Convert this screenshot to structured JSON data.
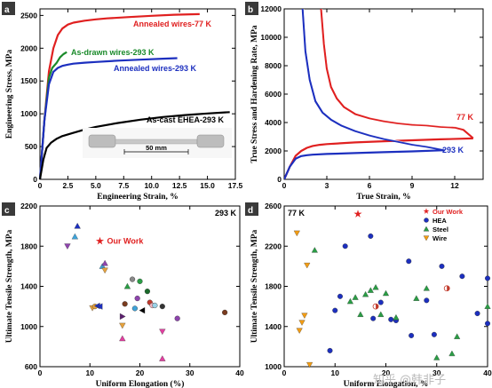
{
  "chart_data": [
    {
      "panel": "a",
      "type": "line",
      "xlabel": "Engineering Strain, %",
      "ylabel": "Engineering Stress, MPa",
      "xlim": [
        0,
        17.5
      ],
      "ylim": [
        0,
        2600
      ],
      "xticks": [
        0,
        2.5,
        5.0,
        7.5,
        10.0,
        12.5,
        15.0,
        17.5
      ],
      "xtick_labels": [
        "0",
        "2.5",
        "5.0",
        "7.5",
        "10.0",
        "12.5",
        "15.0",
        "17.5"
      ],
      "yticks": [
        0,
        500,
        1000,
        1500,
        2000,
        2500
      ],
      "ytick_labels": [
        "0",
        "500",
        "1000",
        "1500",
        "2000",
        "2500"
      ],
      "series": [
        {
          "name": "Annealed wires-77 K",
          "color": "#e02020",
          "label_color": "#e02020",
          "x": [
            0,
            0.4,
            0.8,
            1.2,
            1.6,
            2.0,
            2.5,
            3.0,
            4.0,
            5.0,
            6.0,
            8.0,
            10.0,
            12.0,
            14.3
          ],
          "y": [
            0,
            900,
            1650,
            2000,
            2200,
            2300,
            2360,
            2390,
            2420,
            2440,
            2455,
            2475,
            2495,
            2510,
            2520
          ]
        },
        {
          "name": "As-drawn wires-293 K",
          "color": "#1a8a2a",
          "label_color": "#1a8a2a",
          "x": [
            0,
            0.4,
            0.8,
            1.1,
            1.5,
            1.8,
            2.1,
            2.4
          ],
          "y": [
            0,
            900,
            1550,
            1700,
            1780,
            1860,
            1910,
            1940
          ]
        },
        {
          "name": "Annealed wires-293 K",
          "color": "#1c2fbf",
          "label_color": "#1c2fbf",
          "x": [
            0,
            0.4,
            0.8,
            1.2,
            1.6,
            2.0,
            2.5,
            3.0,
            4.0,
            5.0,
            7.0,
            9.0,
            11.0,
            12.3
          ],
          "y": [
            0,
            900,
            1450,
            1640,
            1700,
            1730,
            1750,
            1765,
            1780,
            1790,
            1810,
            1825,
            1840,
            1848
          ]
        },
        {
          "name": "As-cast EHEA-293 K",
          "color": "#000000",
          "label_color": "#000000",
          "x": [
            0,
            0.3,
            0.6,
            1.0,
            1.5,
            2.0,
            3.0,
            4.0,
            5.0,
            7.0,
            9.0,
            11.0,
            13.0,
            15.0,
            17.0
          ],
          "y": [
            0,
            300,
            480,
            560,
            620,
            660,
            710,
            760,
            800,
            860,
            910,
            950,
            980,
            1005,
            1025
          ]
        }
      ],
      "inset_label": "50 mm"
    },
    {
      "panel": "b",
      "type": "line",
      "xlabel": "True Strain, %",
      "ylabel": "True Stress and Hardening Rate, MPa",
      "xlim": [
        0,
        14
      ],
      "ylim": [
        0,
        12000
      ],
      "xticks": [
        0,
        3,
        6,
        9,
        12
      ],
      "xtick_labels": [
        "0",
        "3",
        "6",
        "9",
        "12"
      ],
      "yticks": [
        0,
        2000,
        4000,
        6000,
        8000,
        10000,
        12000
      ],
      "ytick_labels": [
        "0",
        "2000",
        "4000",
        "6000",
        "8000",
        "10000",
        "12000"
      ],
      "series": [
        {
          "name": "77 K",
          "role": "true stress",
          "color": "#e02020",
          "x": [
            0,
            0.4,
            0.8,
            1.2,
            1.6,
            2.0,
            2.5,
            3.0,
            5.0,
            7.0,
            9.0,
            11.0,
            13.3
          ],
          "y": [
            0,
            900,
            1650,
            2000,
            2220,
            2350,
            2430,
            2480,
            2600,
            2680,
            2750,
            2820,
            2880
          ]
        },
        {
          "name": "77 K",
          "role": "hardening rate",
          "color": "#e02020",
          "x": [
            2.6,
            2.8,
            3.0,
            3.3,
            3.7,
            4.2,
            5.0,
            6.0,
            7.0,
            8.0,
            9.0,
            10.0,
            11.0,
            12.0,
            12.6,
            13.3
          ],
          "y": [
            12000,
            9500,
            7800,
            6500,
            5700,
            5100,
            4600,
            4300,
            4100,
            3950,
            3850,
            3800,
            3700,
            3650,
            3500,
            2900
          ]
        },
        {
          "name": "293 K",
          "role": "true stress",
          "color": "#1c2fbf",
          "x": [
            0,
            0.4,
            0.8,
            1.2,
            1.6,
            2.0,
            3.0,
            5.0,
            7.0,
            9.0,
            11.3
          ],
          "y": [
            0,
            900,
            1450,
            1640,
            1700,
            1740,
            1790,
            1850,
            1910,
            1970,
            2050
          ]
        },
        {
          "name": "293 K",
          "role": "hardening rate",
          "color": "#1c2fbf",
          "x": [
            1.3,
            1.5,
            1.8,
            2.2,
            2.7,
            3.3,
            4.0,
            5.0,
            6.0,
            7.0,
            8.0,
            9.0,
            10.0,
            11.3
          ],
          "y": [
            12000,
            9000,
            7000,
            5500,
            4700,
            4200,
            3800,
            3400,
            3100,
            2850,
            2650,
            2450,
            2300,
            2050
          ]
        }
      ],
      "labels": [
        {
          "text": "77 K",
          "color": "#e02020"
        },
        {
          "text": "293 K",
          "color": "#1c2fbf"
        }
      ]
    },
    {
      "panel": "c",
      "type": "scatter",
      "temperature_label": "293 K",
      "xlabel": "Uniform Elongation (%)",
      "ylabel": "Ultimate Tensile Strength, MPa",
      "xlim": [
        0,
        40
      ],
      "ylim": [
        600,
        2200
      ],
      "xticks": [
        0,
        10,
        20,
        30,
        40
      ],
      "xtick_labels": [
        "0",
        "10",
        "20",
        "30",
        "40"
      ],
      "yticks": [
        600,
        1000,
        1400,
        1800,
        2200
      ],
      "ytick_labels": [
        "600",
        "1000",
        "1400",
        "1800",
        "2200"
      ],
      "annotation": "Our Work",
      "our_work": {
        "x": 12,
        "y": 1850,
        "color": "#e02020"
      },
      "points": [
        {
          "x": 5.5,
          "y": 1800,
          "shape": "tri-down",
          "color": "#8e44ad"
        },
        {
          "x": 7,
          "y": 1895,
          "shape": "tri-up",
          "color": "#3fa3d9"
        },
        {
          "x": 7.5,
          "y": 2000,
          "shape": "tri-up",
          "color": "#1c2fbf"
        },
        {
          "x": 12.5,
          "y": 1600,
          "shape": "tri-up",
          "color": "#3fa3d9"
        },
        {
          "x": 13,
          "y": 1630,
          "shape": "tri-up",
          "color": "#8e44ad"
        },
        {
          "x": 13,
          "y": 1560,
          "shape": "tri-down",
          "color": "#e6a23c"
        },
        {
          "x": 10.5,
          "y": 1185,
          "shape": "tri-down",
          "color": "#e6a23c"
        },
        {
          "x": 11,
          "y": 1200,
          "shape": "circle",
          "color": "#e6a23c"
        },
        {
          "x": 11.5,
          "y": 1205,
          "shape": "tri-left",
          "color": "#1c2fbf"
        },
        {
          "x": 12,
          "y": 1200,
          "shape": "tri-left",
          "color": "#1c2fbf"
        },
        {
          "x": 16.5,
          "y": 1010,
          "shape": "tri-down",
          "color": "#e6a23c"
        },
        {
          "x": 16.5,
          "y": 880,
          "shape": "tri-up",
          "color": "#e040a0"
        },
        {
          "x": 16.5,
          "y": 1100,
          "shape": "tri-right",
          "color": "#5b1f6e"
        },
        {
          "x": 17,
          "y": 1225,
          "shape": "circle",
          "color": "#7a3b1e"
        },
        {
          "x": 17.5,
          "y": 1400,
          "shape": "tri-up",
          "color": "#2a9d45"
        },
        {
          "x": 18.5,
          "y": 1470,
          "shape": "circle",
          "color": "#888"
        },
        {
          "x": 19,
          "y": 1180,
          "shape": "circle",
          "color": "#3fa3d9"
        },
        {
          "x": 20,
          "y": 1450,
          "shape": "circle",
          "color": "#2a9d45"
        },
        {
          "x": 19.5,
          "y": 1280,
          "shape": "circle",
          "color": "#8e44ad"
        },
        {
          "x": 20.5,
          "y": 1160,
          "shape": "tri-left",
          "color": "#000"
        },
        {
          "x": 21.5,
          "y": 1350,
          "shape": "circle",
          "color": "#1a6a2a"
        },
        {
          "x": 22,
          "y": 1240,
          "shape": "circle",
          "color": "#c0392b"
        },
        {
          "x": 22.5,
          "y": 1210,
          "shape": "circle",
          "color": "#f4b6c2"
        },
        {
          "x": 23,
          "y": 1210,
          "shape": "circle",
          "color": "#9ad3e8"
        },
        {
          "x": 24.5,
          "y": 1200,
          "shape": "circle",
          "color": "#333"
        },
        {
          "x": 24.5,
          "y": 950,
          "shape": "tri-down",
          "color": "#e040a0"
        },
        {
          "x": 27.5,
          "y": 1080,
          "shape": "circle",
          "color": "#8e44ad"
        },
        {
          "x": 24.5,
          "y": 680,
          "shape": "tri-up",
          "color": "#e040a0"
        },
        {
          "x": 37,
          "y": 1140,
          "shape": "circle",
          "color": "#7a3b1e"
        }
      ]
    },
    {
      "panel": "d",
      "type": "scatter",
      "temperature_label": "77 K",
      "xlabel": "Uniform Elongation, %",
      "ylabel": "Ultimate Tensile Strength, MPa",
      "xlim": [
        0,
        40
      ],
      "ylim": [
        1000,
        2600
      ],
      "xticks": [
        0,
        10,
        20,
        30,
        40
      ],
      "xtick_labels": [
        "0",
        "10",
        "20",
        "30",
        "40"
      ],
      "yticks": [
        1000,
        1400,
        1800,
        2200,
        2600
      ],
      "ytick_labels": [
        "1000",
        "1400",
        "1800",
        "2200",
        "2600"
      ],
      "legend": [
        {
          "label": "Our Work",
          "shape": "star",
          "color": "#e02020"
        },
        {
          "label": "HEA",
          "shape": "circle",
          "color": "#1c2fbf"
        },
        {
          "label": "Steel",
          "shape": "tri-up",
          "color": "#2a9d45"
        },
        {
          "label": "Wire",
          "shape": "tri-down",
          "color": "#f39c12"
        }
      ],
      "our_work": {
        "x": 14.5,
        "y": 2520,
        "color": "#e02020"
      },
      "hea": [
        [
          9,
          1160
        ],
        [
          10,
          1560
        ],
        [
          11,
          1700
        ],
        [
          12,
          2200
        ],
        [
          17,
          2300
        ],
        [
          17.5,
          1480
        ],
        [
          19,
          1640
        ],
        [
          21,
          1470
        ],
        [
          22,
          1460
        ],
        [
          24.5,
          2050
        ],
        [
          25,
          1310
        ],
        [
          28,
          1660
        ],
        [
          29.5,
          1320
        ],
        [
          31,
          2000
        ],
        [
          35,
          1900
        ],
        [
          38,
          1530
        ],
        [
          40,
          1880
        ],
        [
          40,
          1430
        ]
      ],
      "steel": [
        [
          6,
          2160
        ],
        [
          13,
          1650
        ],
        [
          14,
          1690
        ],
        [
          15,
          1520
        ],
        [
          16,
          1720
        ],
        [
          17,
          1760
        ],
        [
          18,
          1790
        ],
        [
          19,
          1520
        ],
        [
          20,
          1730
        ],
        [
          22,
          1490
        ],
        [
          26,
          1680
        ],
        [
          28,
          1780
        ],
        [
          30,
          1090
        ],
        [
          33,
          1130
        ],
        [
          34,
          1300
        ],
        [
          40,
          1600
        ]
      ],
      "wire": [
        [
          2.5,
          2330
        ],
        [
          3,
          1360
        ],
        [
          3.5,
          1440
        ],
        [
          4,
          1510
        ],
        [
          4.5,
          2010
        ],
        [
          5,
          1020
        ]
      ],
      "half_filled": [
        [
          18,
          1600
        ],
        [
          32,
          1780
        ]
      ]
    }
  ],
  "watermark": "知乎 @韩非子"
}
